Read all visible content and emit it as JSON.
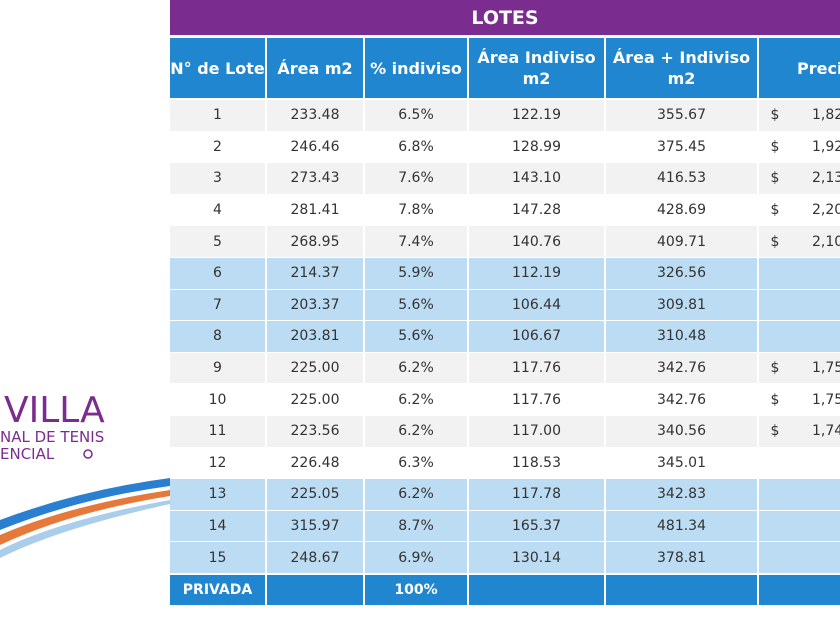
{
  "title": "LOTES",
  "headers": [
    "N° de Lote",
    "Área m2",
    "% indiviso",
    "Área Indiviso m2",
    "Área + Indiviso m2",
    "Preci"
  ],
  "rows": [
    [
      "1",
      "233.48",
      "6.5%",
      "122.19",
      "355.67",
      "$",
      "1,82"
    ],
    [
      "2",
      "246.46",
      "6.8%",
      "128.99",
      "375.45",
      "$",
      "1,92"
    ],
    [
      "3",
      "273.43",
      "7.6%",
      "143.10",
      "416.53",
      "$",
      "2,13"
    ],
    [
      "4",
      "281.41",
      "7.8%",
      "147.28",
      "428.69",
      "$",
      "2,20"
    ],
    [
      "5",
      "268.95",
      "7.4%",
      "140.76",
      "409.71",
      "$",
      "2,10"
    ],
    [
      "6",
      "214.37",
      "5.9%",
      "112.19",
      "326.56"
    ],
    [
      "7",
      "203.37",
      "5.6%",
      "106.44",
      "309.81"
    ],
    [
      "8",
      "203.81",
      "5.6%",
      "106.67",
      "310.48"
    ],
    [
      "9",
      "225.00",
      "6.2%",
      "117.76",
      "342.76",
      "$",
      "1,75"
    ],
    [
      "10",
      "225.00",
      "6.2%",
      "117.76",
      "342.76",
      "$",
      "1,75"
    ],
    [
      "11",
      "223.56",
      "6.2%",
      "117.00",
      "340.56",
      "$",
      "1,74"
    ],
    [
      "12",
      "226.48",
      "6.3%",
      "118.53",
      "345.01"
    ],
    [
      "13",
      "225.05",
      "6.2%",
      "117.78",
      "342.83"
    ],
    [
      "14",
      "315.97",
      "8.7%",
      "165.37",
      "481.34"
    ],
    [
      "15",
      "248.67",
      "6.9%",
      "130.14",
      "378.81"
    ]
  ],
  "footer": [
    "PRIVADA",
    "100%"
  ],
  "logo": {
    "name": "VILLA",
    "line1": "NAL DE TENIS",
    "line2": "ENCIAL"
  }
}
